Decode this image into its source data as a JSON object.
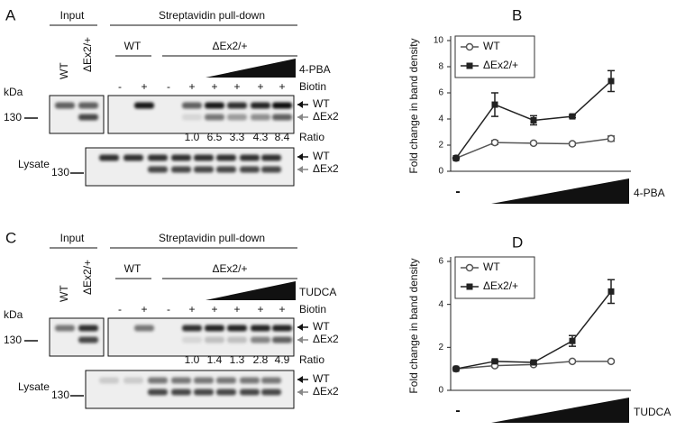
{
  "blots": [
    {
      "panel": "A",
      "input": "Input",
      "pulldown": "Streptavidin pull-down",
      "groups": [
        "WT",
        "ΔEx2/+"
      ],
      "lane_labels": [
        "WT",
        "ΔEx2/+"
      ],
      "treatment": "4-PBA",
      "biotin": "Biotin",
      "biotin_signs": [
        "-",
        "+",
        "-",
        "+",
        "+",
        "+",
        "+",
        "+"
      ],
      "kda": "kDa",
      "marker": "130",
      "lysate_marker": "130",
      "band_labels": [
        "WT",
        "ΔEx2"
      ],
      "lysate_band_labels": [
        "WT",
        "ΔEx2"
      ],
      "ratios": [
        "1.0",
        "6.5",
        "3.3",
        "4.3",
        "8.4"
      ],
      "ratio_label": "Ratio",
      "lysate": "Lysate"
    },
    {
      "panel": "C",
      "input": "Input",
      "pulldown": "Streptavidin pull-down",
      "groups": [
        "WT",
        "ΔEx2/+"
      ],
      "lane_labels": [
        "WT",
        "ΔEx2/+"
      ],
      "treatment": "TUDCA",
      "biotin": "Biotin",
      "biotin_signs": [
        "-",
        "+",
        "-",
        "+",
        "+",
        "+",
        "+",
        "+"
      ],
      "kda": "kDa",
      "marker": "130",
      "lysate_marker": "130",
      "band_labels": [
        "WT",
        "ΔEx2"
      ],
      "lysate_band_labels": [
        "WT",
        "ΔEx2"
      ],
      "ratios": [
        "1.0",
        "1.4",
        "1.3",
        "2.8",
        "4.9"
      ],
      "ratio_label": "Ratio",
      "lysate": "Lysate"
    }
  ],
  "chart_data": [
    {
      "type": "line",
      "panel": "B",
      "ylabel": "Fold change in band density",
      "categories": [
        "-",
        null,
        null,
        null,
        null
      ],
      "treatment": "4-PBA",
      "ylim": [
        0,
        10
      ],
      "yticks": [
        0,
        2,
        4,
        6,
        8,
        10
      ],
      "legend": "upper left",
      "series": [
        {
          "name": "WT",
          "color": "#555555",
          "marker": "circle",
          "values": [
            1,
            2.2,
            2.15,
            2.1,
            2.5
          ],
          "errors": [
            0.05,
            0.15,
            0.1,
            0.1,
            0.2
          ]
        },
        {
          "name": "ΔEx2/+",
          "color": "#222222",
          "marker": "square",
          "values": [
            1,
            5.1,
            3.9,
            4.2,
            6.9
          ],
          "errors": [
            0.05,
            0.9,
            0.35,
            0.1,
            0.8
          ]
        }
      ]
    },
    {
      "type": "line",
      "panel": "D",
      "ylabel": "Fold change in band density",
      "categories": [
        "-",
        null,
        null,
        null,
        null
      ],
      "treatment": "TUDCA",
      "ylim": [
        0,
        6
      ],
      "yticks": [
        0,
        2,
        4,
        6
      ],
      "legend": "upper left",
      "series": [
        {
          "name": "WT",
          "color": "#555555",
          "marker": "circle",
          "values": [
            1,
            1.15,
            1.2,
            1.35,
            1.35
          ],
          "errors": [
            0.05,
            0.05,
            0.05,
            0.05,
            0.05
          ]
        },
        {
          "name": "ΔEx2/+",
          "color": "#222222",
          "marker": "square",
          "values": [
            1,
            1.35,
            1.3,
            2.3,
            4.6
          ],
          "errors": [
            0.05,
            0.05,
            0.05,
            0.25,
            0.55
          ]
        }
      ]
    }
  ]
}
